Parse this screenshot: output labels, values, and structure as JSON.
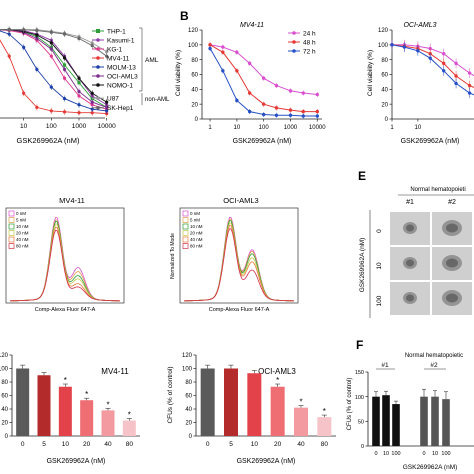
{
  "panel_letters": {
    "b": "B",
    "e": "E",
    "f": "F"
  },
  "chart_data": [
    {
      "id": "a_viability_lines",
      "type": "line",
      "xlabel": "GSK269962A (nM)",
      "xscale": "log",
      "xlim": [
        1,
        20000
      ],
      "ylim": [
        0,
        120
      ],
      "x": [
        1,
        3,
        10,
        30,
        100,
        300,
        1000,
        3000,
        10000
      ],
      "x_ticklabels": [
        {
          "v": 1,
          "t": "1"
        },
        {
          "v": 10,
          "t": "10"
        },
        {
          "v": 100,
          "t": "100"
        },
        {
          "v": 1000,
          "t": "1000"
        },
        {
          "v": 10000,
          "t": "10000"
        }
      ],
      "legend_groups": [
        {
          "label": "AML"
        },
        {
          "label": "non-AML"
        }
      ],
      "series": [
        {
          "name": "THP-1",
          "color": "#2e9e3a",
          "marker": "s",
          "values": [
            100,
            100,
            98,
            92,
            80,
            60,
            40,
            22,
            12
          ]
        },
        {
          "name": "Kasumi-1",
          "color": "#8e3fa8",
          "marker": "o",
          "values": [
            100,
            100,
            99,
            95,
            88,
            70,
            45,
            25,
            15
          ]
        },
        {
          "name": "KG-1",
          "color": "#e0368c",
          "marker": "o",
          "values": [
            100,
            99,
            96,
            88,
            70,
            45,
            25,
            15,
            10
          ]
        },
        {
          "name": "MV4-11",
          "color": "#e53935",
          "marker": "o",
          "values": [
            96,
            70,
            28,
            12,
            8,
            7,
            6,
            6,
            5
          ]
        },
        {
          "name": "MOLM-13",
          "color": "#1c3fa8",
          "marker": "o",
          "values": [
            100,
            95,
            80,
            55,
            35,
            22,
            15,
            10,
            8
          ]
        },
        {
          "name": "OCI-AML3",
          "color": "#7b2d8e",
          "marker": "o",
          "values": [
            100,
            100,
            97,
            90,
            78,
            55,
            30,
            18,
            12
          ]
        },
        {
          "name": "NOMO-1",
          "color": "#111111",
          "marker": "o",
          "values": [
            100,
            100,
            98,
            94,
            85,
            68,
            45,
            28,
            18
          ]
        },
        {
          "name": "U87",
          "color": "#999999",
          "marker": "o",
          "values": [
            100,
            100,
            100,
            100,
            98,
            96,
            92,
            85,
            75
          ]
        },
        {
          "name": "SK-Hep1",
          "color": "#666666",
          "marker": "o",
          "values": [
            100,
            100,
            100,
            99,
            97,
            95,
            90,
            82,
            70
          ]
        }
      ]
    },
    {
      "id": "b_mv411_lines",
      "type": "line",
      "title": "MV4-11",
      "xlabel": "GSK269962A (nM)",
      "ylabel": "Cell viability (%)",
      "xscale": "log",
      "xlim": [
        0.5,
        15000
      ],
      "ylim": [
        0,
        120
      ],
      "yticks": [
        0,
        20,
        40,
        60,
        80,
        100,
        120
      ],
      "x": [
        1,
        3,
        10,
        30,
        100,
        300,
        1000,
        3000,
        10000
      ],
      "x_ticklabels": [
        {
          "v": 1,
          "t": "1"
        },
        {
          "v": 10,
          "t": "10"
        },
        {
          "v": 100,
          "t": "100"
        },
        {
          "v": 1000,
          "t": "1000"
        },
        {
          "v": 10000,
          "t": "10000"
        }
      ],
      "series": [
        {
          "name": "24 h",
          "color": "#d94fd0",
          "values": [
            100,
            97,
            90,
            75,
            55,
            45,
            38,
            35,
            33
          ]
        },
        {
          "name": "48 h",
          "color": "#e53935",
          "values": [
            100,
            90,
            65,
            35,
            20,
            15,
            12,
            10,
            10
          ]
        },
        {
          "name": "72 h",
          "color": "#2650c8",
          "values": [
            95,
            65,
            25,
            10,
            6,
            5,
            5,
            4,
            4
          ]
        }
      ]
    },
    {
      "id": "b_ociaml3_lines",
      "type": "line",
      "title": "OCI-AML3",
      "xlabel": "GSK269962A (nM)",
      "ylabel": "Cell viability (%)",
      "xscale": "log",
      "xlim": [
        1,
        15000
      ],
      "ylim": [
        0,
        120
      ],
      "yticks": [
        0,
        20,
        40,
        60,
        80,
        100,
        120
      ],
      "x": [
        1,
        3,
        10,
        30,
        100,
        300,
        1000,
        3000,
        10000
      ],
      "x_ticklabels": [
        {
          "v": 1,
          "t": "1"
        },
        {
          "v": 10,
          "t": "10"
        }
      ],
      "series": [
        {
          "name": "24 h",
          "color": "#d94fd0",
          "values": [
            100,
            100,
            98,
            95,
            88,
            75,
            62,
            52,
            45
          ]
        },
        {
          "name": "48 h",
          "color": "#e53935",
          "values": [
            100,
            98,
            95,
            88,
            75,
            58,
            45,
            38,
            32
          ]
        },
        {
          "name": "72 h",
          "color": "#2650c8",
          "values": [
            100,
            97,
            92,
            82,
            65,
            48,
            35,
            28,
            25
          ]
        }
      ]
    },
    {
      "id": "c_mv411_flow",
      "type": "line",
      "title": "MV4-11",
      "xlabel": "Comp-Alexa Fluor 647-A",
      "legend": [
        "0 nM",
        "5 nM",
        "10 nM",
        "20 nM",
        "40 nM",
        "80 nM"
      ],
      "colors": [
        "#d94fd0",
        "#e0a24a",
        "#2e9e3a",
        "#c7c74a",
        "#e57a3a",
        "#d12f4a"
      ],
      "peak_heights": [
        1.0,
        0.97,
        0.95,
        0.92,
        0.88,
        0.84
      ],
      "second_peak_heights": [
        0.38,
        0.33,
        0.28,
        0.24,
        0.18,
        0.14
      ]
    },
    {
      "id": "c_ociaml3_flow",
      "type": "line",
      "title": "OCI-AML3",
      "xlabel": "Comp-Alexa Fluor 647-A",
      "ylabel": "Normalized To Mode",
      "legend": [
        "0 nM",
        "5 nM",
        "10 nM",
        "20 nM",
        "40 nM",
        "80 nM"
      ],
      "colors": [
        "#d94fd0",
        "#e0a24a",
        "#2e9e3a",
        "#c7c74a",
        "#e57a3a",
        "#d12f4a"
      ],
      "peak_heights": [
        1.0,
        0.98,
        0.96,
        0.93,
        0.9,
        0.86
      ],
      "second_peak_heights": [
        0.6,
        0.58,
        0.55,
        0.5,
        0.45,
        0.35
      ]
    },
    {
      "id": "d_mv411_bars",
      "type": "bar",
      "title": "MV4-11",
      "xlabel": "GSK269962A (nM)",
      "ylim": [
        0,
        120
      ],
      "yticks": [
        0,
        20,
        40,
        60,
        80,
        100,
        120
      ],
      "categories": [
        "0",
        "5",
        "10",
        "20",
        "40",
        "80"
      ],
      "values": [
        100,
        90,
        73,
        53,
        38,
        23
      ],
      "errors": [
        5,
        4,
        4,
        3,
        3,
        3
      ],
      "significant": [
        false,
        false,
        true,
        true,
        true,
        true
      ],
      "colors": [
        "#5a5a5a",
        "#b42b2b",
        "#e3424a",
        "#ee6e73",
        "#f29aa0",
        "#f6c4c8"
      ]
    },
    {
      "id": "d_ociaml3_bars",
      "type": "bar",
      "title": "OCI-AML3",
      "xlabel": "GSK269962A (nM)",
      "ylabel": "CFUs (% of control)",
      "ylim": [
        0,
        120
      ],
      "yticks": [
        0,
        20,
        40,
        60,
        80,
        100,
        120
      ],
      "categories": [
        "0",
        "5",
        "10",
        "20",
        "40",
        "80"
      ],
      "values": [
        100,
        100,
        93,
        73,
        42,
        28
      ],
      "errors": [
        5,
        5,
        4,
        4,
        3,
        3
      ],
      "significant": [
        false,
        false,
        false,
        true,
        true,
        true
      ],
      "colors": [
        "#5a5a5a",
        "#b42b2b",
        "#e3424a",
        "#ee6e73",
        "#f29aa0",
        "#f6c4c8"
      ]
    },
    {
      "id": "f_normal_bars",
      "type": "bar",
      "title": "Normal hematopoietic",
      "xlabel": "GSK269962A (nM)",
      "ylabel": "CFUs (% of control)",
      "ylim": [
        0,
        150
      ],
      "yticks": [
        0,
        50,
        100,
        150
      ],
      "groups": [
        "#1",
        "#2"
      ],
      "categories": [
        "0",
        "10",
        "100",
        "0",
        "10",
        "100"
      ],
      "values": [
        100,
        103,
        85,
        100,
        100,
        95
      ],
      "errors": [
        10,
        8,
        6,
        15,
        12,
        15
      ],
      "colors": [
        "#111111",
        "#111111",
        "#111111",
        "#555555",
        "#555555",
        "#555555"
      ]
    }
  ],
  "panel_e": {
    "title": "Normal hematopoieti",
    "ylabel": "GSK269962A (nM)",
    "columns": [
      "#1",
      "#2"
    ],
    "rows": [
      "0",
      "10",
      "100"
    ]
  }
}
